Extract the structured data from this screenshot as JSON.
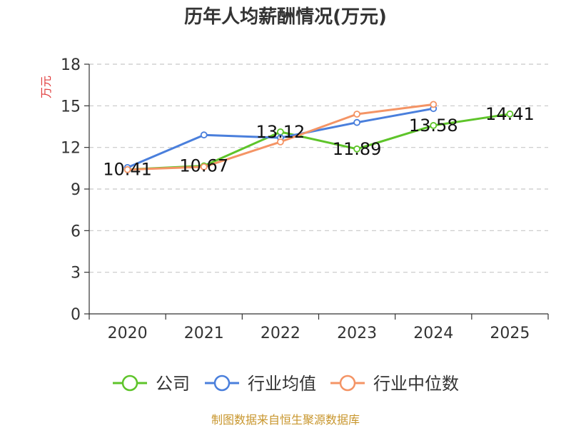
{
  "title": "历年人均薪酬情况(万元)",
  "source": "制图数据来自恒生聚源数据库",
  "colors": {
    "公司": "#5ec42a",
    "行业均值": "#4a7fdc",
    "行业中位数": "#f49465",
    "grid": "#c8c8c8",
    "axis": "#333333",
    "unit": "#e03c3c",
    "source": "#c8962d"
  },
  "chart_data": {
    "type": "line",
    "title": "历年人均薪酬情况(万元)",
    "ylabel": "万元",
    "xlabel": "",
    "categories": [
      "2020",
      "2021",
      "2022",
      "2023",
      "2024",
      "2025"
    ],
    "ylim": [
      0,
      18
    ],
    "yticks": [
      0,
      3,
      6,
      9,
      12,
      15,
      18
    ],
    "grid": "horizontal dashed",
    "legend_position": "bottom",
    "series": [
      {
        "name": "公司",
        "color": "#5ec42a",
        "values": [
          10.41,
          10.67,
          13.12,
          11.89,
          13.58,
          14.41
        ],
        "labels": [
          "10.41",
          "10.67",
          "13.12",
          "11.89",
          "13.58",
          "14.41"
        ]
      },
      {
        "name": "行业均值",
        "color": "#4a7fdc",
        "values": [
          10.55,
          12.9,
          12.7,
          13.8,
          14.8,
          null
        ]
      },
      {
        "name": "行业中位数",
        "color": "#f49465",
        "values": [
          10.4,
          10.6,
          12.4,
          14.4,
          15.1,
          null
        ]
      }
    ]
  }
}
